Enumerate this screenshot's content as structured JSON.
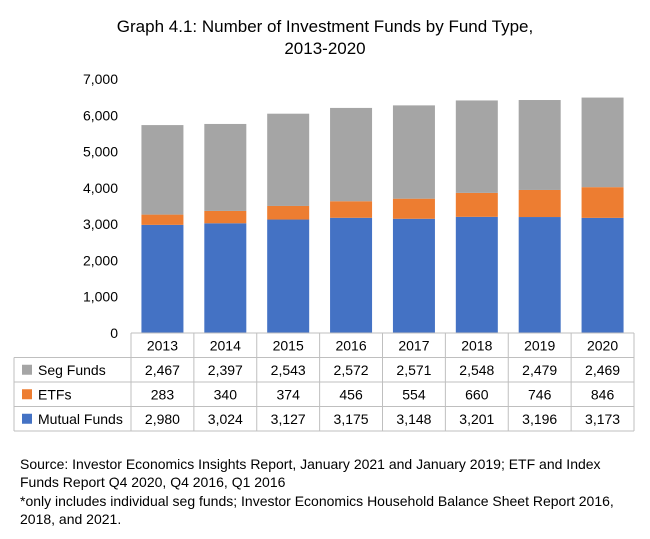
{
  "title_line1": "Graph 4.1: Number of Investment Funds by Fund Type,",
  "title_line2": "2013-2020",
  "source_note": "Source: Investor Economics Insights Report, January 2021 and January 2019; ETF and Index Funds Report Q4 2020, Q4 2016, Q1 2016",
  "footnote": "*only includes individual seg funds; Investor Economics Household Balance Sheet Report 2016, 2018, and 2021.",
  "chart_data": {
    "type": "bar",
    "stacked": true,
    "categories": [
      "2013",
      "2014",
      "2015",
      "2016",
      "2017",
      "2018",
      "2019",
      "2020"
    ],
    "series": [
      {
        "name": "Mutual Funds",
        "color": "#4472C4",
        "values": [
          2980,
          3024,
          3127,
          3175,
          3148,
          3201,
          3196,
          3173
        ]
      },
      {
        "name": "ETFs",
        "color": "#ED7D31",
        "values": [
          283,
          340,
          374,
          456,
          554,
          660,
          746,
          846
        ]
      },
      {
        "name": "Seg Funds",
        "color": "#A5A5A5",
        "values": [
          2467,
          2397,
          2543,
          2572,
          2571,
          2548,
          2479,
          2469
        ]
      }
    ],
    "table_row_order": [
      "Seg Funds",
      "ETFs",
      "Mutual Funds"
    ],
    "yticks": [
      "0",
      "1,000",
      "2,000",
      "3,000",
      "4,000",
      "5,000",
      "6,000",
      "7,000"
    ],
    "ylim": [
      0,
      7000
    ],
    "grid": false,
    "legend": "data table"
  }
}
